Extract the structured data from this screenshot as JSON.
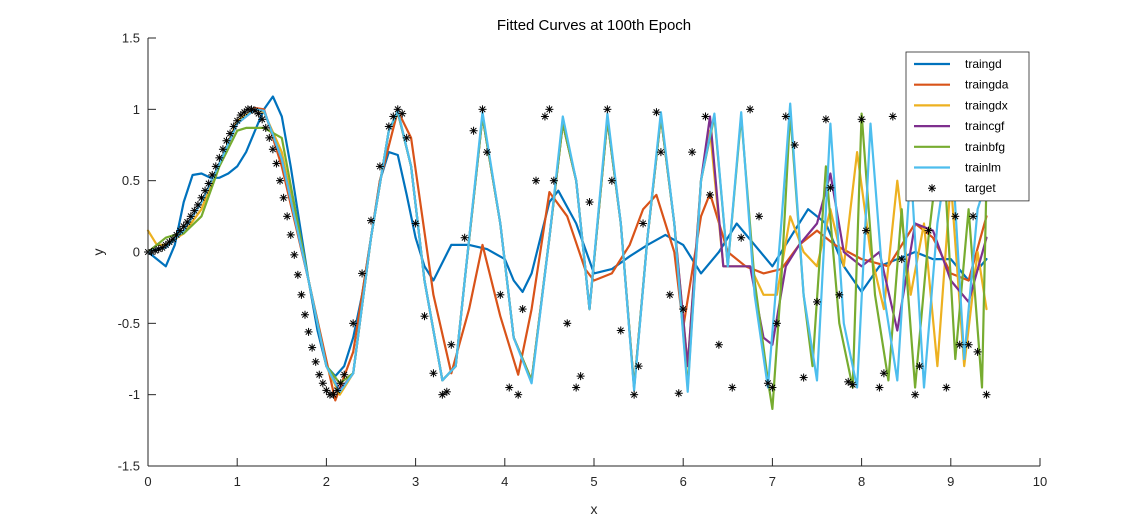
{
  "chart_data": {
    "type": "line",
    "title": "Fitted Curves at 100th Epoch",
    "xlabel": "x",
    "ylabel": "y",
    "xlim": [
      0,
      10
    ],
    "ylim": [
      -1.5,
      1.5
    ],
    "xticks": [
      0,
      1,
      2,
      3,
      4,
      5,
      6,
      7,
      8,
      9,
      10
    ],
    "yticks": [
      -1.5,
      -1,
      -0.5,
      0,
      0.5,
      1,
      1.5
    ],
    "xtick_labels": [
      "0",
      "1",
      "2",
      "3",
      "4",
      "5",
      "6",
      "7",
      "8",
      "9",
      "10"
    ],
    "ytick_labels": [
      "-1.5",
      "-1",
      "-0.5",
      "0",
      "0.5",
      "1",
      "1.5"
    ],
    "legend_position": "top-right",
    "grid": false,
    "series": [
      {
        "name": "traingd",
        "color": "#0072BD",
        "x": [
          0,
          0.1,
          0.2,
          0.3,
          0.4,
          0.5,
          0.6,
          0.7,
          0.8,
          0.9,
          1.0,
          1.1,
          1.2,
          1.3,
          1.4,
          1.5,
          1.6,
          1.7,
          1.8,
          1.9,
          2.0,
          2.1,
          2.2,
          2.3,
          2.4,
          2.5,
          2.6,
          2.7,
          2.8,
          2.9,
          3.0,
          3.1,
          3.2,
          3.4,
          3.6,
          3.8,
          4.0,
          4.1,
          4.2,
          4.3,
          4.4,
          4.5,
          4.6,
          4.8,
          5.0,
          5.2,
          5.4,
          5.6,
          5.8,
          6.0,
          6.2,
          6.4,
          6.6,
          6.8,
          7.0,
          7.2,
          7.4,
          7.6,
          7.8,
          8.0,
          8.2,
          8.4,
          8.6,
          8.8,
          9.0,
          9.2,
          9.4
        ],
        "values": [
          0,
          -0.05,
          -0.1,
          0.05,
          0.35,
          0.54,
          0.55,
          0.52,
          0.52,
          0.55,
          0.6,
          0.7,
          0.85,
          1.0,
          1.09,
          0.95,
          0.6,
          0.2,
          -0.2,
          -0.55,
          -0.8,
          -0.87,
          -0.8,
          -0.6,
          -0.3,
          0.1,
          0.5,
          0.7,
          0.68,
          0.4,
          0.1,
          -0.1,
          -0.2,
          0.05,
          0.05,
          0.02,
          -0.05,
          -0.2,
          -0.28,
          -0.15,
          0.1,
          0.35,
          0.43,
          0.2,
          -0.15,
          -0.12,
          -0.03,
          0.05,
          0.12,
          0.05,
          -0.15,
          0.0,
          0.2,
          0.05,
          -0.1,
          0.1,
          0.3,
          0.2,
          -0.1,
          -0.28,
          -0.1,
          -0.05,
          0.0,
          -0.05,
          -0.05,
          -0.2,
          -0.05
        ]
      },
      {
        "name": "traingda",
        "color": "#D95319",
        "x": [
          0,
          0.1,
          0.2,
          0.4,
          0.6,
          0.8,
          1.0,
          1.2,
          1.3,
          1.5,
          1.8,
          2.1,
          2.3,
          2.6,
          2.8,
          2.95,
          3.2,
          3.4,
          3.6,
          3.75,
          3.95,
          4.15,
          4.3,
          4.5,
          4.7,
          4.9,
          5.0,
          5.2,
          5.4,
          5.55,
          5.7,
          5.9,
          6.0,
          6.2,
          6.3,
          6.5,
          6.7,
          6.9,
          7.1,
          7.3,
          7.5,
          7.7,
          8.0,
          8.3,
          8.6,
          8.8,
          9.0,
          9.2,
          9.4
        ],
        "values": [
          0,
          0.02,
          0.03,
          0.15,
          0.35,
          0.62,
          0.9,
          1.01,
          1.0,
          0.6,
          -0.2,
          -1.04,
          -0.7,
          0.5,
          0.99,
          0.8,
          -0.3,
          -0.85,
          -0.4,
          0.05,
          -0.45,
          -0.86,
          -0.4,
          0.42,
          0.25,
          -0.12,
          -0.2,
          -0.15,
          0.05,
          0.3,
          0.4,
          0.0,
          -0.53,
          0.25,
          0.41,
          0.0,
          -0.1,
          -0.15,
          -0.12,
          0.05,
          0.15,
          0.05,
          -0.05,
          -0.1,
          0.2,
          0.1,
          -0.15,
          -0.2,
          0.25
        ]
      },
      {
        "name": "traingdx",
        "color": "#EDB120",
        "x": [
          0,
          0.1,
          0.2,
          0.4,
          0.6,
          0.8,
          1.0,
          1.2,
          1.3,
          1.5,
          1.8,
          2.0,
          2.15,
          2.3,
          2.5,
          2.7,
          2.8,
          2.95,
          3.1,
          3.3,
          3.45,
          3.55,
          3.75,
          3.95,
          4.1,
          4.3,
          4.5,
          4.65,
          4.8,
          4.95,
          5.15,
          5.3,
          5.45,
          5.6,
          5.75,
          5.9,
          6.05,
          6.2,
          6.3,
          6.45,
          6.6,
          6.75,
          6.9,
          7.05,
          7.2,
          7.35,
          7.5,
          7.65,
          7.8,
          7.95,
          8.1,
          8.25,
          8.4,
          8.55,
          8.7,
          8.85,
          9.0,
          9.15,
          9.3,
          9.4
        ],
        "values": [
          0.15,
          0.05,
          0.05,
          0.13,
          0.3,
          0.62,
          0.92,
          1.0,
          0.98,
          0.7,
          -0.2,
          -0.8,
          -1.0,
          -0.85,
          0.1,
          0.85,
          0.99,
          0.6,
          -0.2,
          -0.9,
          -0.8,
          -0.2,
          0.95,
          0.2,
          -0.6,
          -0.9,
          0.1,
          0.9,
          0.5,
          -0.4,
          0.93,
          0.2,
          -0.95,
          0.1,
          0.95,
          0.2,
          -0.8,
          0.5,
          0.85,
          -0.1,
          -0.1,
          -0.1,
          -0.3,
          -0.3,
          0.25,
          0.0,
          -0.1,
          0.3,
          -0.1,
          0.7,
          0.0,
          -0.4,
          0.5,
          -0.3,
          0.2,
          -0.8,
          0.5,
          -0.8,
          0.0,
          -0.4
        ]
      },
      {
        "name": "traincgf",
        "color": "#7E2F8E",
        "x": [
          0,
          0.1,
          0.2,
          0.4,
          0.6,
          0.8,
          1.0,
          1.2,
          1.3,
          1.5,
          1.8,
          2.0,
          2.15,
          2.3,
          2.5,
          2.7,
          2.8,
          2.95,
          3.1,
          3.3,
          3.45,
          3.55,
          3.75,
          3.95,
          4.1,
          4.3,
          4.5,
          4.65,
          4.8,
          4.95,
          5.15,
          5.3,
          5.45,
          5.6,
          5.75,
          5.9,
          6.05,
          6.2,
          6.3,
          6.45,
          6.6,
          6.75,
          6.9,
          7.0,
          7.15,
          7.3,
          7.5,
          7.65,
          7.8,
          8.0,
          8.2,
          8.4,
          8.6,
          8.8,
          9.0,
          9.2,
          9.4
        ],
        "values": [
          0,
          0.02,
          0.03,
          0.15,
          0.35,
          0.62,
          0.9,
          1.0,
          0.99,
          0.65,
          -0.2,
          -0.8,
          -0.97,
          -0.85,
          0.1,
          0.85,
          0.98,
          0.6,
          -0.2,
          -0.9,
          -0.8,
          -0.2,
          0.95,
          0.2,
          -0.6,
          -0.9,
          0.1,
          0.9,
          0.5,
          -0.4,
          0.93,
          0.2,
          -0.95,
          0.1,
          0.95,
          0.2,
          -0.8,
          0.5,
          0.95,
          -0.1,
          -0.1,
          -0.1,
          -0.6,
          -0.65,
          -0.1,
          0.05,
          0.2,
          0.55,
          0.0,
          -0.1,
          0.0,
          -0.55,
          0.2,
          0.15,
          -0.2,
          -0.35,
          0.1
        ]
      },
      {
        "name": "trainbfg",
        "color": "#77AC30",
        "x": [
          0,
          0.1,
          0.2,
          0.3,
          0.4,
          0.6,
          0.8,
          1.0,
          1.1,
          1.3,
          1.5,
          1.8,
          2.0,
          2.15,
          2.3,
          2.5,
          2.7,
          2.8,
          2.95,
          3.1,
          3.3,
          3.45,
          3.55,
          3.75,
          3.95,
          4.1,
          4.3,
          4.5,
          4.65,
          4.8,
          4.95,
          5.15,
          5.3,
          5.45,
          5.6,
          5.75,
          5.9,
          6.05,
          6.2,
          6.35,
          6.5,
          6.65,
          6.8,
          6.95,
          7.0,
          7.1,
          7.2,
          7.35,
          7.45,
          7.6,
          7.75,
          7.9,
          8.0,
          8.15,
          8.3,
          8.45,
          8.6,
          8.75,
          8.9,
          9.05,
          9.2,
          9.35,
          9.4
        ],
        "values": [
          0,
          0.05,
          0.1,
          0.12,
          0.13,
          0.25,
          0.6,
          0.85,
          0.87,
          0.87,
          0.8,
          -0.2,
          -0.8,
          -0.92,
          -0.85,
          0.1,
          0.85,
          0.98,
          0.6,
          -0.2,
          -0.9,
          -0.8,
          -0.2,
          0.95,
          0.2,
          -0.6,
          -0.9,
          0.1,
          0.9,
          0.5,
          -0.4,
          0.93,
          0.2,
          -0.95,
          0.1,
          0.95,
          0.2,
          -0.95,
          0.5,
          0.95,
          -0.1,
          0.95,
          -0.2,
          -0.9,
          -1.1,
          -0.2,
          0.98,
          -0.3,
          -0.8,
          0.6,
          -0.5,
          -0.95,
          0.97,
          -0.3,
          -0.9,
          0.3,
          -0.95,
          0.1,
          0.9,
          -0.75,
          0.3,
          -0.95,
          0.5
        ]
      },
      {
        "name": "trainlm",
        "color": "#4DBEEE",
        "x": [
          0,
          0.1,
          0.2,
          0.4,
          0.6,
          0.8,
          1.0,
          1.2,
          1.3,
          1.5,
          1.8,
          2.0,
          2.15,
          2.3,
          2.5,
          2.7,
          2.8,
          2.95,
          3.1,
          3.3,
          3.45,
          3.55,
          3.75,
          3.95,
          4.1,
          4.3,
          4.5,
          4.65,
          4.8,
          4.95,
          5.15,
          5.3,
          5.45,
          5.6,
          5.75,
          5.9,
          6.05,
          6.2,
          6.35,
          6.5,
          6.65,
          6.8,
          6.95,
          7.1,
          7.2,
          7.35,
          7.5,
          7.65,
          7.8,
          7.95,
          8.1,
          8.25,
          8.4,
          8.55,
          8.7,
          8.85,
          9.0,
          9.15,
          9.3,
          9.4
        ],
        "values": [
          0,
          0.02,
          0.03,
          0.15,
          0.35,
          0.62,
          0.9,
          1.0,
          0.99,
          0.65,
          -0.2,
          -0.8,
          -0.98,
          -0.85,
          0.1,
          0.85,
          0.99,
          0.6,
          -0.2,
          -0.9,
          -0.8,
          -0.2,
          0.98,
          0.2,
          -0.6,
          -0.92,
          0.1,
          0.95,
          0.5,
          -0.4,
          0.97,
          0.2,
          -0.97,
          0.1,
          0.98,
          0.2,
          -0.98,
          0.5,
          0.97,
          -0.1,
          0.98,
          -0.3,
          -0.95,
          0.2,
          1.04,
          -0.3,
          -0.9,
          0.9,
          -0.5,
          -0.95,
          0.9,
          -0.3,
          -0.9,
          0.6,
          -0.95,
          0.2,
          0.85,
          -0.75,
          0.3,
          0.5
        ]
      }
    ],
    "target": {
      "name": "target",
      "color": "#000000",
      "marker": "*",
      "x": [
        0,
        0.04,
        0.08,
        0.12,
        0.16,
        0.2,
        0.24,
        0.28,
        0.32,
        0.36,
        0.4,
        0.44,
        0.48,
        0.52,
        0.56,
        0.6,
        0.64,
        0.68,
        0.72,
        0.76,
        0.8,
        0.84,
        0.88,
        0.92,
        0.96,
        1.0,
        1.04,
        1.08,
        1.12,
        1.16,
        1.2,
        1.24,
        1.28,
        1.32,
        1.36,
        1.4,
        1.44,
        1.48,
        1.52,
        1.56,
        1.6,
        1.64,
        1.68,
        1.72,
        1.76,
        1.8,
        1.84,
        1.88,
        1.92,
        1.96,
        2.0,
        2.04,
        2.08,
        2.12,
        2.16,
        2.2,
        2.3,
        2.4,
        2.5,
        2.6,
        2.7,
        2.75,
        2.8,
        2.85,
        2.9,
        3.0,
        3.1,
        3.2,
        3.3,
        3.35,
        3.4,
        3.55,
        3.65,
        3.75,
        3.8,
        3.95,
        4.05,
        4.15,
        4.2,
        4.35,
        4.45,
        4.5,
        4.55,
        4.7,
        4.8,
        4.85,
        4.95,
        5.15,
        5.2,
        5.3,
        5.45,
        5.5,
        5.55,
        5.7,
        5.75,
        5.85,
        5.95,
        6.0,
        6.1,
        6.25,
        6.3,
        6.4,
        6.55,
        6.65,
        6.75,
        6.85,
        6.95,
        7.0,
        7.05,
        7.15,
        7.25,
        7.35,
        7.5,
        7.6,
        7.65,
        7.75,
        7.85,
        7.9,
        8.0,
        8.05,
        8.2,
        8.25,
        8.35,
        8.45,
        8.6,
        8.65,
        8.75,
        8.9,
        8.95,
        9.05,
        9.1,
        9.2,
        9.25,
        9.3,
        9.4
      ],
      "values": [
        0,
        0.0,
        0.01,
        0.02,
        0.03,
        0.05,
        0.07,
        0.09,
        0.12,
        0.15,
        0.18,
        0.21,
        0.25,
        0.29,
        0.33,
        0.38,
        0.43,
        0.48,
        0.54,
        0.6,
        0.66,
        0.72,
        0.78,
        0.83,
        0.88,
        0.92,
        0.96,
        0.98,
        1.0,
        1.0,
        0.99,
        0.97,
        0.93,
        0.87,
        0.8,
        0.72,
        0.62,
        0.5,
        0.38,
        0.25,
        0.12,
        -0.02,
        -0.16,
        -0.3,
        -0.44,
        -0.56,
        -0.67,
        -0.77,
        -0.86,
        -0.92,
        -0.97,
        -1.0,
        -1.0,
        -0.97,
        -0.92,
        -0.86,
        -0.5,
        -0.15,
        0.22,
        0.6,
        0.88,
        0.95,
        1.0,
        0.97,
        0.8,
        0.2,
        -0.45,
        -0.85,
        -1.0,
        -0.98,
        -0.65,
        0.1,
        0.85,
        1.0,
        0.7,
        -0.3,
        -0.95,
        -1.0,
        -0.4,
        0.5,
        0.95,
        1.0,
        0.5,
        -0.5,
        -0.95,
        -0.87,
        0.35,
        1.0,
        0.5,
        -0.55,
        -1.0,
        -0.8,
        0.2,
        0.98,
        0.7,
        -0.3,
        -0.99,
        -0.4,
        0.7,
        0.95,
        0.4,
        -0.65,
        -0.95,
        0.1,
        1.0,
        0.25,
        -0.92,
        -0.95,
        -0.5,
        0.95,
        0.75,
        -0.88,
        -0.35,
        0.93,
        0.45,
        -0.3,
        -0.91,
        -0.93,
        0.93,
        0.15,
        -0.95,
        -0.85,
        0.95,
        -0.05,
        -1.0,
        -0.8,
        0.15,
        0.6,
        -0.95,
        0.25,
        -0.65,
        -0.65,
        0.25,
        -0.7,
        -1.0
      ]
    }
  }
}
